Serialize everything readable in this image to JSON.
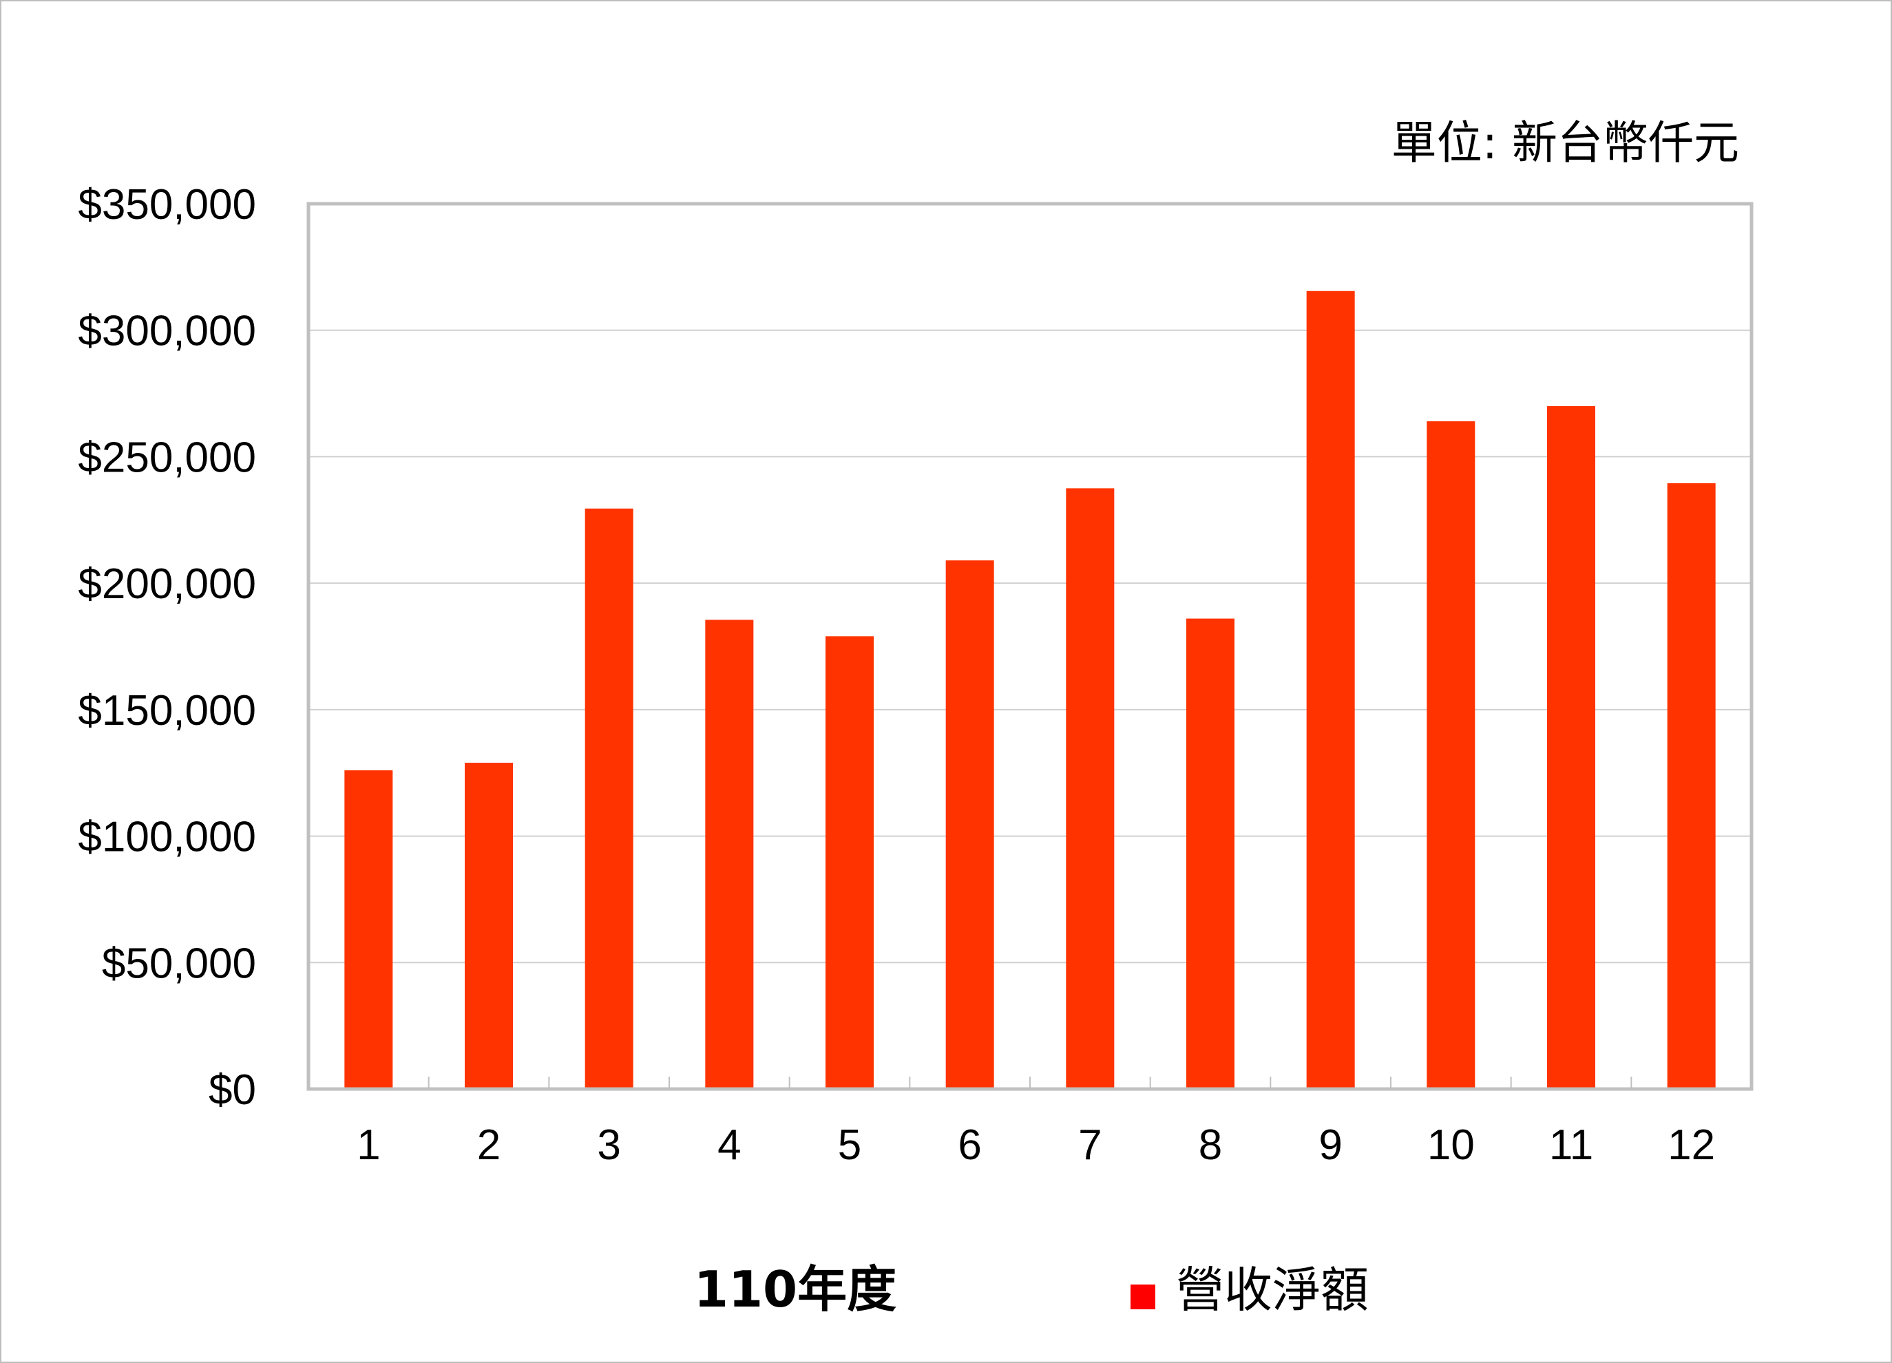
{
  "chart_data": {
    "type": "bar",
    "unit_note": "單位: 新台幣仟元",
    "xlabel": "110年度",
    "categories": [
      "1",
      "2",
      "3",
      "4",
      "5",
      "6",
      "7",
      "8",
      "9",
      "10",
      "11",
      "12"
    ],
    "series": [
      {
        "name": "營收淨額",
        "color": "#ff3300",
        "values": [
          126000,
          129000,
          229500,
          185500,
          179000,
          209000,
          237500,
          186000,
          315500,
          264000,
          270000,
          239500
        ]
      }
    ],
    "ylim": [
      0,
      350000
    ],
    "yticks": [
      0,
      50000,
      100000,
      150000,
      200000,
      250000,
      300000,
      350000
    ],
    "ytick_labels": [
      "$0",
      "$50,000",
      "$100,000",
      "$150,000",
      "$200,000",
      "$250,000",
      "$300,000",
      "$350,000"
    ],
    "grid": true,
    "legend_position": "bottom"
  }
}
